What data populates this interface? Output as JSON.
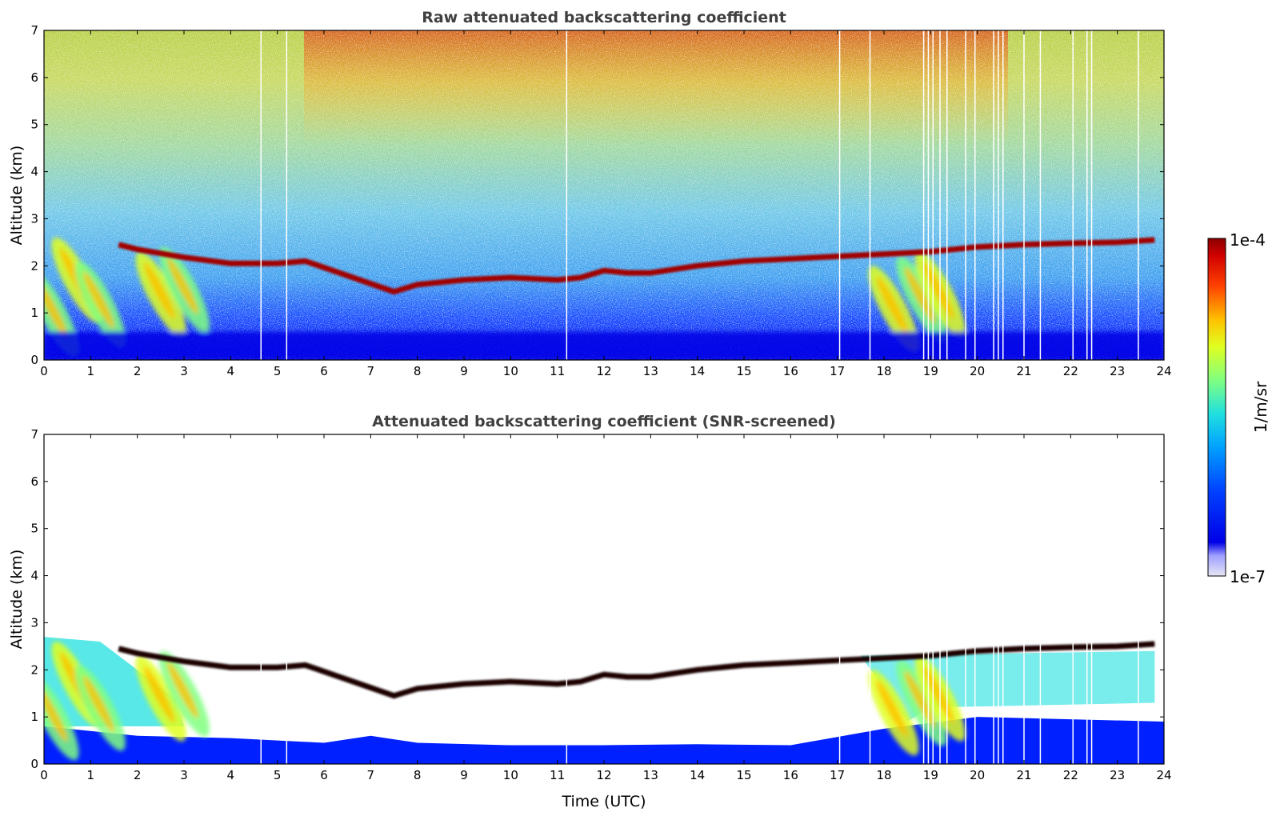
{
  "chart_data": [
    {
      "type": "heatmap",
      "title": "Raw attenuated backscattering coefficient",
      "xlabel": "",
      "ylabel": "Altitude (km)",
      "xlim": [
        0,
        24
      ],
      "ylim": [
        0,
        7
      ],
      "xticks": [
        "0",
        "1",
        "2",
        "3",
        "4",
        "5",
        "6",
        "7",
        "8",
        "9",
        "10",
        "11",
        "12",
        "13",
        "14",
        "15",
        "16",
        "17",
        "18",
        "19",
        "20",
        "21",
        "22",
        "23",
        "24"
      ],
      "yticks": [
        "0",
        "1",
        "2",
        "3",
        "4",
        "5",
        "6",
        "7"
      ],
      "screened": false,
      "cloud_layer": [
        [
          1.6,
          2.45
        ],
        [
          2.0,
          2.35
        ],
        [
          3.0,
          2.18
        ],
        [
          4.0,
          2.05
        ],
        [
          5.0,
          2.05
        ],
        [
          5.6,
          2.1
        ],
        [
          7.5,
          1.45
        ],
        [
          8.0,
          1.6
        ],
        [
          9.0,
          1.7
        ],
        [
          10.0,
          1.75
        ],
        [
          11.0,
          1.7
        ],
        [
          11.5,
          1.75
        ],
        [
          12.0,
          1.9
        ],
        [
          12.5,
          1.85
        ],
        [
          13.0,
          1.85
        ],
        [
          14.0,
          2.0
        ],
        [
          15.0,
          2.1
        ],
        [
          16.0,
          2.15
        ],
        [
          17.0,
          2.2
        ],
        [
          18.0,
          2.25
        ],
        [
          19.0,
          2.3
        ],
        [
          20.0,
          2.4
        ],
        [
          21.0,
          2.45
        ],
        [
          22.0,
          2.48
        ],
        [
          23.0,
          2.5
        ],
        [
          23.8,
          2.55
        ]
      ],
      "aerosol_plumes": [
        [
          0.0,
          1.5
        ],
        [
          0.5,
          2.2
        ],
        [
          1.0,
          1.7
        ],
        [
          2.3,
          1.9
        ],
        [
          2.8,
          2.0
        ],
        [
          18.0,
          1.6
        ],
        [
          18.6,
          1.8
        ],
        [
          19.0,
          1.9
        ]
      ],
      "colorbar": {
        "label": "1/m/sr",
        "min_label": "1e-7",
        "max_label": "1e-4"
      }
    },
    {
      "type": "heatmap",
      "title": "Attenuated backscattering coefficient (SNR-screened)",
      "xlabel": "Time (UTC)",
      "ylabel": "Altitude (km)",
      "xlim": [
        0,
        24
      ],
      "ylim": [
        0,
        7
      ],
      "xticks": [
        "0",
        "1",
        "2",
        "3",
        "4",
        "5",
        "6",
        "7",
        "8",
        "9",
        "10",
        "11",
        "12",
        "13",
        "14",
        "15",
        "16",
        "17",
        "18",
        "19",
        "20",
        "21",
        "22",
        "23",
        "24"
      ],
      "yticks": [
        "0",
        "1",
        "2",
        "3",
        "4",
        "5",
        "6",
        "7"
      ],
      "screened": true
    }
  ],
  "colors": {
    "colormap": [
      "#e6e6f5",
      "#0000e6",
      "#0020ff",
      "#00a0ff",
      "#20e0e0",
      "#80ff80",
      "#e0ff20",
      "#ffc000",
      "#ff4000",
      "#a00000"
    ],
    "cloud_top": "#1a0000",
    "title_color": "#404040"
  }
}
